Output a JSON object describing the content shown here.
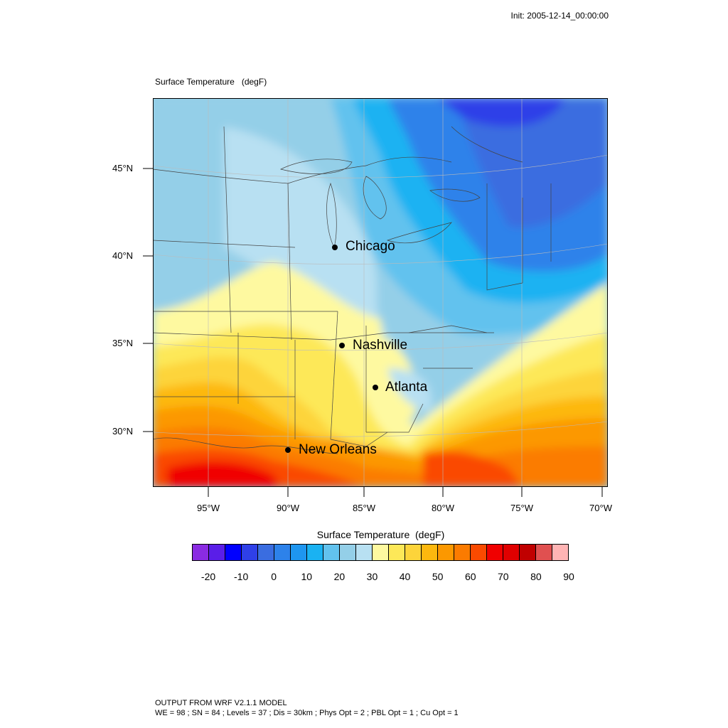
{
  "init": "Init: 2005-12-14_00:00:00",
  "map_title": "Surface Temperature   (degF)",
  "lat_labels": [
    "45°N",
    "40°N",
    "35°N",
    "30°N"
  ],
  "lon_labels": [
    "95°W",
    "90°W",
    "85°W",
    "80°W",
    "75°W",
    "70°W"
  ],
  "cities": [
    "Chicago",
    "Nashville",
    "Atlanta",
    "New Orleans"
  ],
  "colorbar": {
    "title": "Surface Temperature  (degF)",
    "labels": [
      "-20",
      "-10",
      "0",
      "10",
      "20",
      "30",
      "40",
      "50",
      "60",
      "70",
      "80",
      "90"
    ],
    "colors": [
      "#8a2be2",
      "#5a1ee8",
      "#0000ff",
      "#2f40e8",
      "#3a6de0",
      "#2d82ea",
      "#1e96f0",
      "#1ab2f2",
      "#62c2ee",
      "#94cfe8",
      "#b8e0f2",
      "#fef9a0",
      "#fde858",
      "#fdd43a",
      "#fdb80e",
      "#fc9800",
      "#fb7b00",
      "#fa4a00",
      "#f00000",
      "#e00000",
      "#c00000",
      "#e05050",
      "#ffb4b4"
    ]
  },
  "footer": {
    "line1": "OUTPUT FROM WRF V2.1.1 MODEL",
    "line2": "WE = 98 ; SN = 84 ; Levels = 37 ; Dis = 30km ; Phys Opt = 2 ; PBL Opt = 1 ; Cu Opt = 1"
  }
}
